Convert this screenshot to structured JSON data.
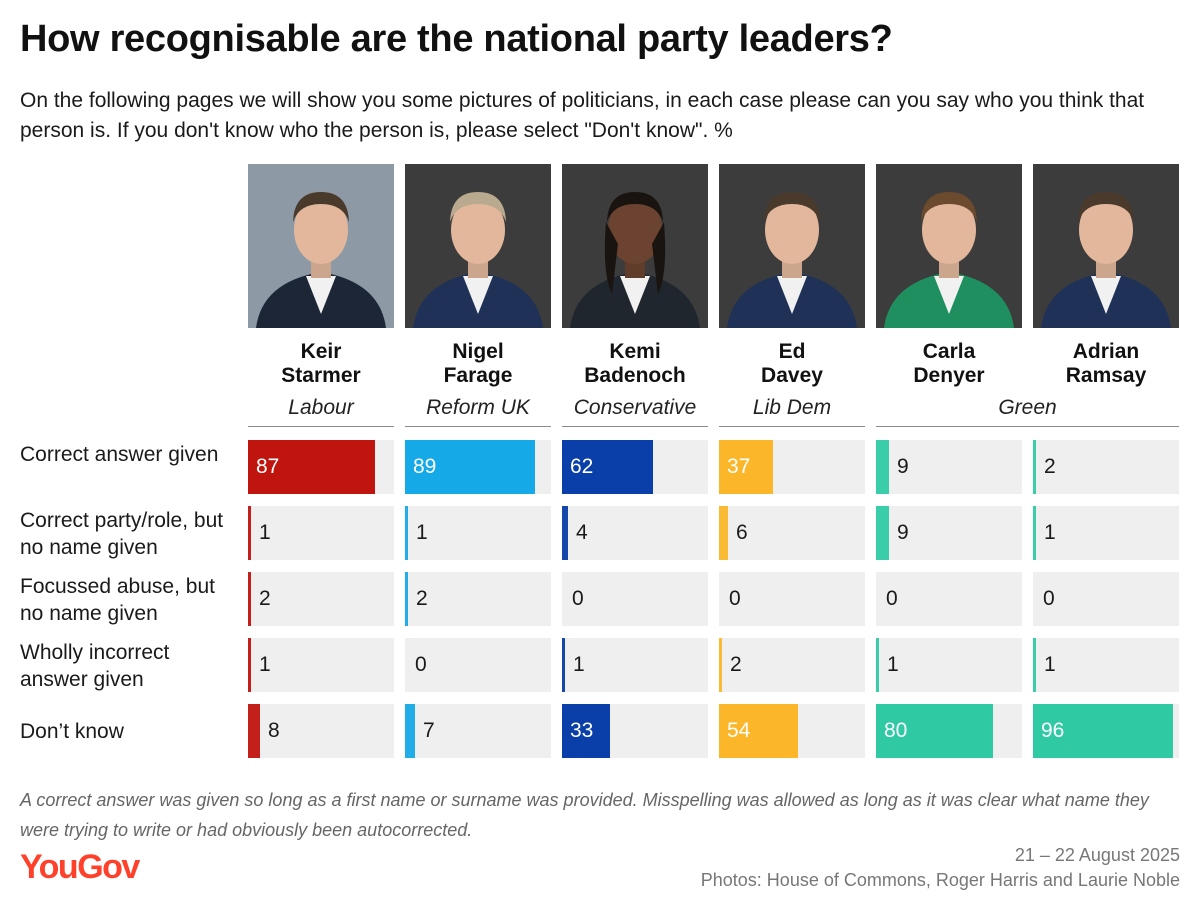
{
  "title": "How recognisable are the national party leaders?",
  "subtitle": "On the following pages we will show you some pictures of politicians, in each case please can you say who you think that person is. If you don't know who the person is, please select \"Don't know\". %",
  "footnote": "A correct answer was given so long as a first name or surname was provided. Misspelling was allowed as long as it was clear what name they were trying to write or had obviously been autocorrected.",
  "brand": "YouGov",
  "date": "21 – 22 August 2025",
  "credit": "Photos: House of Commons, Roger Harris and Laurie Noble",
  "colors": {
    "brand": "#ff412c",
    "cell_bg": "#efefef"
  },
  "chart_data": {
    "type": "table",
    "unit": "%",
    "rows": [
      "Correct answer given",
      "Correct party/role, but no name given",
      "Focussed abuse, but no name given",
      "Wholly incorrect answer given",
      "Don’t know"
    ],
    "parties": [
      {
        "label": "Labour",
        "columns": [
          0
        ]
      },
      {
        "label": "Reform UK",
        "columns": [
          1
        ]
      },
      {
        "label": "Conservative",
        "columns": [
          2
        ]
      },
      {
        "label": "Lib Dem",
        "columns": [
          3
        ]
      },
      {
        "label": "Green",
        "columns": [
          4,
          5
        ]
      }
    ],
    "series": [
      {
        "first": "Keir",
        "last": "Starmer",
        "party": "Labour",
        "color": "#c0140f",
        "values": [
          87,
          1,
          2,
          1,
          8
        ]
      },
      {
        "first": "Nigel",
        "last": "Farage",
        "party": "Reform UK",
        "color": "#16a9e8",
        "values": [
          89,
          1,
          2,
          0,
          7
        ]
      },
      {
        "first": "Kemi",
        "last": "Badenoch",
        "party": "Conservative",
        "color": "#0a3ea8",
        "values": [
          62,
          4,
          0,
          1,
          33
        ]
      },
      {
        "first": "Ed",
        "last": "Davey",
        "party": "Lib Dem",
        "color": "#fbb629",
        "values": [
          37,
          6,
          0,
          2,
          54
        ]
      },
      {
        "first": "Carla",
        "last": "Denyer",
        "party": "Green",
        "color": "#2fcaa4",
        "values": [
          9,
          9,
          0,
          1,
          80
        ]
      },
      {
        "first": "Adrian",
        "last": "Ramsay",
        "party": "Green",
        "color": "#2fcaa4",
        "values": [
          2,
          1,
          0,
          1,
          96
        ]
      }
    ],
    "value_range": [
      0,
      100
    ]
  }
}
